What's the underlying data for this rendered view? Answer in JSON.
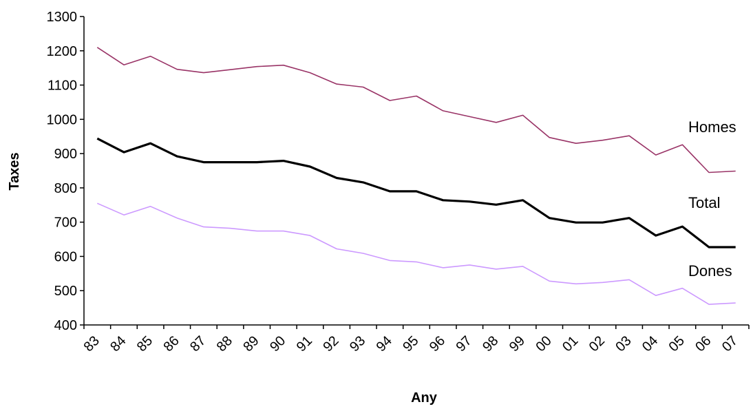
{
  "chart_data": {
    "type": "line",
    "title": "",
    "xlabel": "Any",
    "ylabel": "Taxes",
    "ylim": [
      400,
      1300
    ],
    "yticks": [
      400,
      500,
      600,
      700,
      800,
      900,
      1000,
      1100,
      1200,
      1300
    ],
    "grid": false,
    "legend": "none (series labelled directly at right end of lines)",
    "categories": [
      "83",
      "84",
      "85",
      "86",
      "87",
      "88",
      "89",
      "90",
      "91",
      "92",
      "93",
      "94",
      "95",
      "96",
      "97",
      "98",
      "99",
      "00",
      "01",
      "02",
      "03",
      "04",
      "05",
      "06",
      "07"
    ],
    "series": [
      {
        "name": "Homes",
        "color": "#993366",
        "values": [
          1210,
          1159,
          1184,
          1146,
          1136,
          1145,
          1154,
          1158,
          1136,
          1103,
          1094,
          1055,
          1068,
          1025,
          1008,
          991,
          1012,
          947,
          930,
          939,
          952,
          896,
          926,
          845,
          849
        ]
      },
      {
        "name": "Total",
        "color": "#000000",
        "values": [
          944,
          904,
          930,
          892,
          875,
          875,
          875,
          879,
          862,
          829,
          816,
          790,
          790,
          764,
          760,
          751,
          764,
          712,
          699,
          699,
          712,
          661,
          687,
          627,
          627
        ]
      },
      {
        "name": "Dones",
        "color": "#cc99ff",
        "values": [
          755,
          721,
          746,
          712,
          686,
          682,
          674,
          674,
          661,
          622,
          609,
          588,
          584,
          567,
          575,
          563,
          571,
          528,
          520,
          524,
          532,
          486,
          507,
          460,
          464
        ]
      }
    ]
  }
}
